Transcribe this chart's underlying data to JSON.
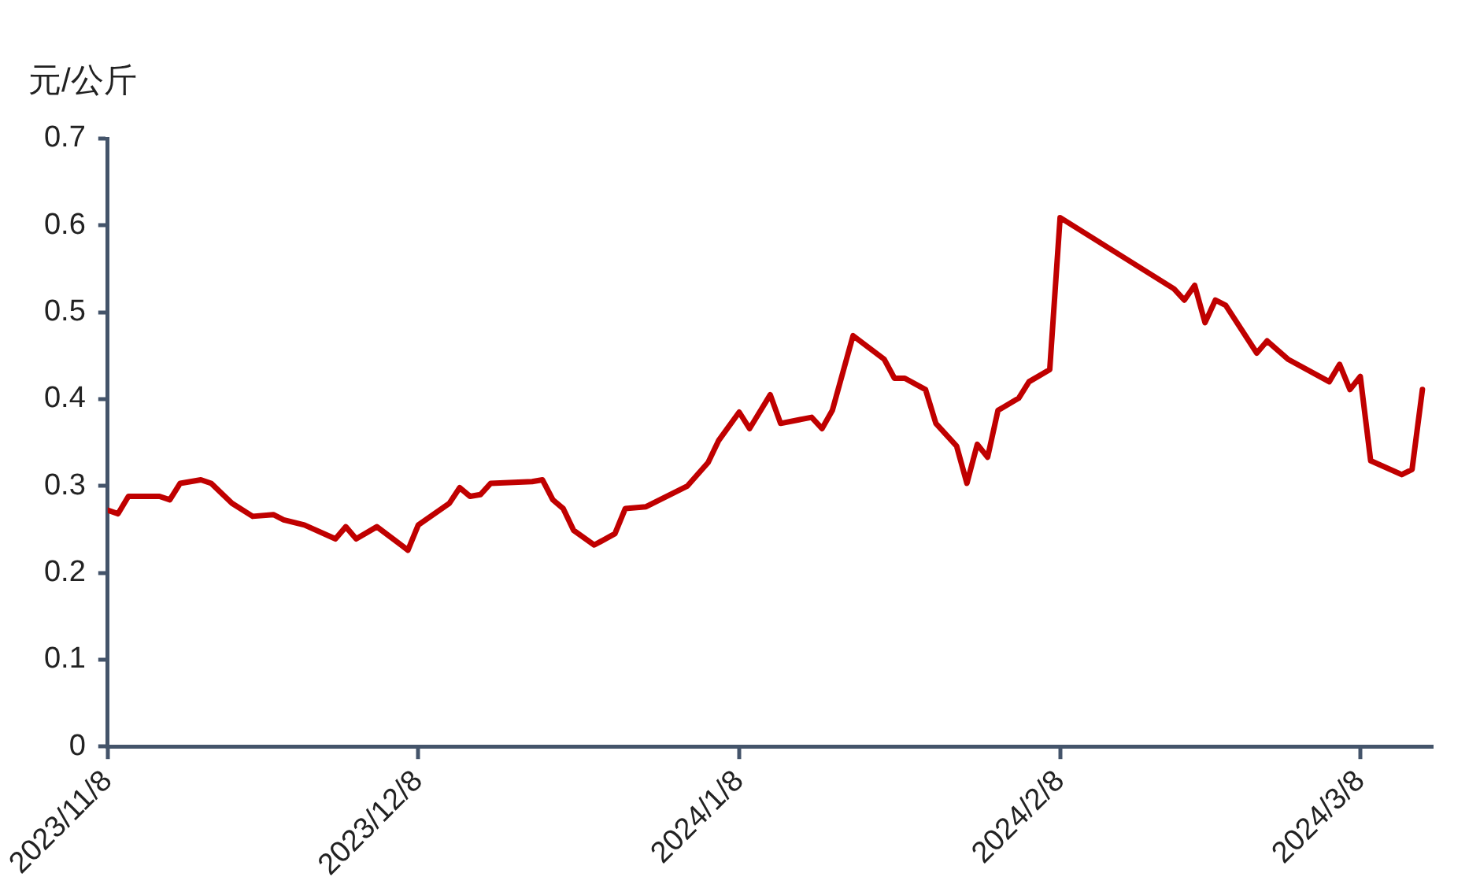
{
  "chart_data": {
    "type": "line",
    "ylabel": "元/公斤",
    "x": [
      "2023-11-08",
      "2023-11-09",
      "2023-11-10",
      "2023-11-13",
      "2023-11-14",
      "2023-11-15",
      "2023-11-17",
      "2023-11-18",
      "2023-11-20",
      "2023-11-22",
      "2023-11-24",
      "2023-11-25",
      "2023-11-27",
      "2023-11-30",
      "2023-12-01",
      "2023-12-02",
      "2023-12-04",
      "2023-12-07",
      "2023-12-08",
      "2023-12-11",
      "2023-12-12",
      "2023-12-13",
      "2023-12-14",
      "2023-12-15",
      "2023-12-19",
      "2023-12-20",
      "2023-12-21",
      "2023-12-22",
      "2023-12-23",
      "2023-12-25",
      "2023-12-27",
      "2023-12-28",
      "2023-12-30",
      "2024-01-03",
      "2024-01-05",
      "2024-01-06",
      "2024-01-08",
      "2024-01-09",
      "2024-01-11",
      "2024-01-12",
      "2024-01-15",
      "2024-01-16",
      "2024-01-17",
      "2024-01-19",
      "2024-01-22",
      "2024-01-23",
      "2024-01-24",
      "2024-01-26",
      "2024-01-27",
      "2024-01-29",
      "2024-01-30",
      "2024-01-31",
      "2024-02-01",
      "2024-02-02",
      "2024-02-04",
      "2024-02-05",
      "2024-02-07",
      "2024-02-08",
      "2024-02-19",
      "2024-02-20",
      "2024-02-21",
      "2024-02-22",
      "2024-02-23",
      "2024-02-24",
      "2024-02-27",
      "2024-02-28",
      "2024-03-01",
      "2024-03-05",
      "2024-03-06",
      "2024-03-07",
      "2024-03-08",
      "2024-03-09",
      "2024-03-12",
      "2024-03-13",
      "2024-03-14"
    ],
    "series": [
      {
        "color": "#c00000",
        "values": [
          0.272,
          0.268,
          0.288,
          0.288,
          0.284,
          0.303,
          0.307,
          0.303,
          0.28,
          0.265,
          0.267,
          0.261,
          0.255,
          0.239,
          0.253,
          0.239,
          0.253,
          0.226,
          0.255,
          0.28,
          0.298,
          0.288,
          0.29,
          0.303,
          0.305,
          0.307,
          0.284,
          0.274,
          0.249,
          0.232,
          0.245,
          0.274,
          0.276,
          0.3,
          0.327,
          0.352,
          0.385,
          0.366,
          0.405,
          0.372,
          0.379,
          0.366,
          0.387,
          0.473,
          0.446,
          0.424,
          0.424,
          0.411,
          0.372,
          0.346,
          0.303,
          0.348,
          0.333,
          0.387,
          0.401,
          0.42,
          0.434,
          0.609,
          0.527,
          0.514,
          0.531,
          0.488,
          0.514,
          0.508,
          0.453,
          0.467,
          0.446,
          0.42,
          0.44,
          0.411,
          0.426,
          0.329,
          0.313,
          0.319,
          0.411
        ]
      }
    ],
    "xlim": [
      "2023-11-08",
      "2024-03-15"
    ],
    "xticks": [
      {
        "value": "2023-11-08",
        "label": "2023/11/8"
      },
      {
        "value": "2023-12-08",
        "label": "2023/12/8"
      },
      {
        "value": "2024-01-08",
        "label": "2024/1/8"
      },
      {
        "value": "2024-02-08",
        "label": "2024/2/8"
      },
      {
        "value": "2024-03-08",
        "label": "2024/3/8"
      }
    ],
    "ylim": [
      0,
      0.7
    ],
    "yticks": [
      0,
      0.1,
      0.2,
      0.3,
      0.4,
      0.5,
      0.6,
      0.7
    ],
    "grid": false,
    "legend": false,
    "marker": "none",
    "line_style": "solid"
  }
}
